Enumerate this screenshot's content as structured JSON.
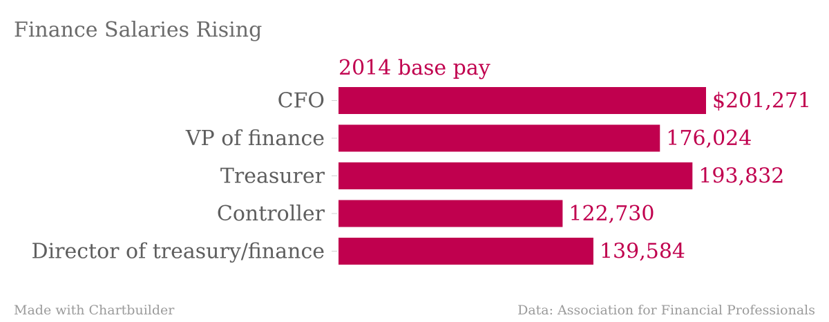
{
  "chart_data": {
    "type": "bar",
    "orientation": "horizontal",
    "title": "Finance Salaries Rising",
    "series": [
      {
        "name": "2014 base pay",
        "values": [
          201271,
          176024,
          193832,
          122730,
          139584
        ],
        "labels": [
          "$201,271",
          "176,024",
          "193,832",
          "122,730",
          "139,584"
        ]
      }
    ],
    "categories": [
      "CFO",
      "VP of finance",
      "Treasurer",
      "Controller",
      "Director of treasury/finance"
    ],
    "xlim": [
      0,
      201271
    ],
    "grid": false,
    "bar_color": "#c0004e"
  },
  "footer": {
    "left": "Made with Chartbuilder",
    "right": "Data: Association for Financial Professionals"
  }
}
